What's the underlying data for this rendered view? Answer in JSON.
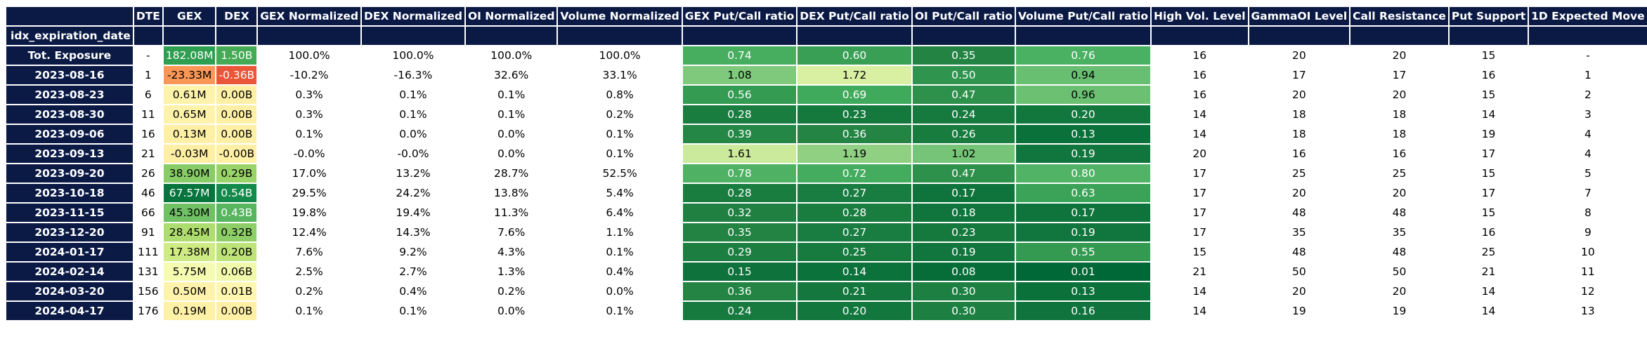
{
  "chart_data": {
    "type": "table",
    "index_name": "idx_expiration_date",
    "columns": [
      "DTE",
      "GEX",
      "DEX",
      "GEX Normalized",
      "DEX Normalized",
      "OI Normalized",
      "Volume Normalized",
      "GEX Put/Call ratio",
      "DEX Put/Call ratio",
      "OI Put/Call ratio",
      "Volume Put/Call ratio",
      "High Vol. Level",
      "GammaOI Level",
      "Call Resistance",
      "Put Support",
      "1D Expected Move"
    ],
    "rows": [
      {
        "label": "Tot. Exposure",
        "cells": [
          "-",
          "182.08M",
          "1.50B",
          "100.0%",
          "100.0%",
          "100.0%",
          "100.0%",
          "0.74",
          "0.60",
          "0.35",
          "0.76",
          "16",
          "20",
          "20",
          "15",
          "-"
        ]
      },
      {
        "label": "2023-08-16",
        "cells": [
          "1",
          "-23.33M",
          "-0.36B",
          "-10.2%",
          "-16.3%",
          "32.6%",
          "33.1%",
          "1.08",
          "1.72",
          "0.50",
          "0.94",
          "16",
          "17",
          "17",
          "16",
          "1"
        ]
      },
      {
        "label": "2023-08-23",
        "cells": [
          "6",
          "0.61M",
          "0.00B",
          "0.3%",
          "0.1%",
          "0.1%",
          "0.8%",
          "0.56",
          "0.69",
          "0.47",
          "0.96",
          "16",
          "20",
          "20",
          "15",
          "2"
        ]
      },
      {
        "label": "2023-08-30",
        "cells": [
          "11",
          "0.65M",
          "0.00B",
          "0.3%",
          "0.1%",
          "0.1%",
          "0.2%",
          "0.28",
          "0.23",
          "0.24",
          "0.20",
          "14",
          "18",
          "18",
          "14",
          "3"
        ]
      },
      {
        "label": "2023-09-06",
        "cells": [
          "16",
          "0.13M",
          "0.00B",
          "0.1%",
          "0.0%",
          "0.0%",
          "0.1%",
          "0.39",
          "0.36",
          "0.26",
          "0.13",
          "14",
          "18",
          "18",
          "19",
          "4"
        ]
      },
      {
        "label": "2023-09-13",
        "cells": [
          "21",
          "-0.03M",
          "-0.00B",
          "-0.0%",
          "-0.0%",
          "0.0%",
          "0.1%",
          "1.61",
          "1.19",
          "1.02",
          "0.19",
          "20",
          "16",
          "16",
          "17",
          "4"
        ]
      },
      {
        "label": "2023-09-20",
        "cells": [
          "26",
          "38.90M",
          "0.29B",
          "17.0%",
          "13.2%",
          "28.7%",
          "52.5%",
          "0.78",
          "0.72",
          "0.47",
          "0.80",
          "17",
          "25",
          "25",
          "15",
          "5"
        ]
      },
      {
        "label": "2023-10-18",
        "cells": [
          "46",
          "67.57M",
          "0.54B",
          "29.5%",
          "24.2%",
          "13.8%",
          "5.4%",
          "0.28",
          "0.27",
          "0.17",
          "0.63",
          "17",
          "20",
          "20",
          "17",
          "7"
        ]
      },
      {
        "label": "2023-11-15",
        "cells": [
          "66",
          "45.30M",
          "0.43B",
          "19.8%",
          "19.4%",
          "11.3%",
          "6.4%",
          "0.32",
          "0.28",
          "0.18",
          "0.17",
          "17",
          "48",
          "48",
          "15",
          "8"
        ]
      },
      {
        "label": "2023-12-20",
        "cells": [
          "91",
          "28.45M",
          "0.32B",
          "12.4%",
          "14.3%",
          "7.6%",
          "1.1%",
          "0.35",
          "0.27",
          "0.23",
          "0.19",
          "17",
          "35",
          "35",
          "16",
          "9"
        ]
      },
      {
        "label": "2024-01-17",
        "cells": [
          "111",
          "17.38M",
          "0.20B",
          "7.6%",
          "9.2%",
          "4.3%",
          "0.1%",
          "0.29",
          "0.25",
          "0.19",
          "0.55",
          "15",
          "48",
          "48",
          "25",
          "10"
        ]
      },
      {
        "label": "2024-02-14",
        "cells": [
          "131",
          "5.75M",
          "0.06B",
          "2.5%",
          "2.7%",
          "1.3%",
          "0.4%",
          "0.15",
          "0.14",
          "0.08",
          "0.01",
          "21",
          "50",
          "50",
          "21",
          "11"
        ]
      },
      {
        "label": "2024-03-20",
        "cells": [
          "156",
          "0.50M",
          "0.01B",
          "0.2%",
          "0.4%",
          "0.2%",
          "0.0%",
          "0.36",
          "0.21",
          "0.30",
          "0.13",
          "14",
          "20",
          "20",
          "14",
          "12"
        ]
      },
      {
        "label": "2024-04-17",
        "cells": [
          "176",
          "0.19M",
          "0.00B",
          "0.1%",
          "0.1%",
          "0.0%",
          "0.1%",
          "0.24",
          "0.20",
          "0.30",
          "0.16",
          "14",
          "19",
          "19",
          "14",
          "13"
        ]
      }
    ],
    "colored_columns": {
      "GEX": {
        "colormap": "red-yellow-green",
        "scale_max": 70
      },
      "DEX": {
        "colormap": "red-yellow-green",
        "scale_max": 0.6
      },
      "GEX Put/Call ratio": {
        "colormap": "yellow-green-reversed",
        "vmin": 0.01,
        "vmax": 1.8
      },
      "DEX Put/Call ratio": {
        "colormap": "yellow-green-reversed",
        "vmin": 0.01,
        "vmax": 1.8
      },
      "OI Put/Call ratio": {
        "colormap": "yellow-green-reversed",
        "vmin": 0.01,
        "vmax": 1.8
      },
      "Volume Put/Call ratio": {
        "colormap": "yellow-green-reversed",
        "vmin": 0.01,
        "vmax": 1.8
      }
    },
    "colors": {
      "header_bg": "#0b1a45",
      "header_text": "#ffffff",
      "total_row_gex": "#2e9e50",
      "total_row_dex": "#44aa55"
    }
  }
}
